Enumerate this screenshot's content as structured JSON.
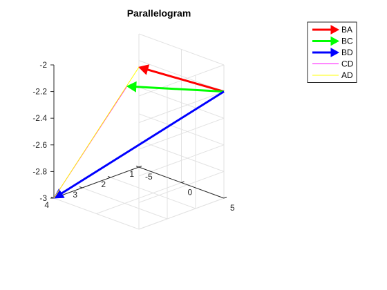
{
  "chart_data": {
    "type": "line",
    "projection": "3d",
    "title": "Parallelogram",
    "points": {
      "A": [
        -5,
        1,
        -2.25
      ],
      "B": [
        5,
        1,
        -2.2
      ],
      "C": [
        3.6,
        4,
        -1.96
      ],
      "D": [
        -5,
        4,
        -3
      ]
    },
    "series": [
      {
        "name": "BA",
        "from": "B",
        "to": "A",
        "color": "#ff0000",
        "width": 3,
        "arrow": true
      },
      {
        "name": "BC",
        "from": "B",
        "to": "C",
        "color": "#00ff00",
        "width": 3,
        "arrow": true
      },
      {
        "name": "BD",
        "from": "B",
        "to": "D",
        "color": "#0000ff",
        "width": 3,
        "arrow": true
      },
      {
        "name": "CD",
        "from": "C",
        "to": "D",
        "color": "#ff00ff",
        "width": 1,
        "arrow": false
      },
      {
        "name": "AD",
        "from": "A",
        "to": "D",
        "color": "#ffff00",
        "width": 1,
        "arrow": false
      }
    ],
    "xlim": [
      -5,
      5
    ],
    "ylim": [
      1,
      4
    ],
    "zlim": [
      -3,
      -2
    ],
    "x_ticks": [
      -5,
      0,
      5
    ],
    "x_tick_labels": [
      "-5",
      "0",
      "5"
    ],
    "y_ticks": [
      1,
      2,
      3,
      4
    ],
    "y_tick_labels": [
      "1",
      "2",
      "3",
      "4"
    ],
    "z_ticks": [
      -3,
      -2.8,
      -2.6,
      -2.4,
      -2.2,
      -2
    ],
    "z_tick_labels": [
      "-3",
      "-2.8",
      "-2.6",
      "-2.4",
      "-2.2",
      "-2"
    ],
    "grid": true,
    "legend_location": "top-right"
  },
  "colors": {
    "grid": "#e2e2e2",
    "axis": "#262626"
  }
}
